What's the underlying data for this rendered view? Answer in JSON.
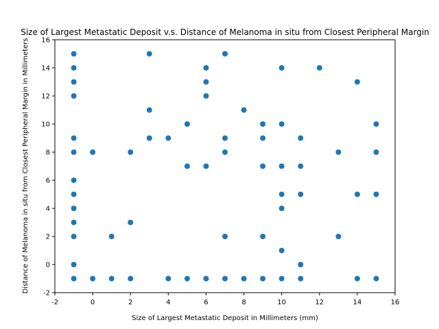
{
  "chart_data": {
    "type": "scatter",
    "title": "Size of Largest Metastatic Deposit v.s. Distance of Melanoma in situ from Closest Peripheral Margin",
    "xlabel": "Size of Largest Metastatic Deposit in Millimeters (mm)",
    "ylabel": "Distance of Melanoma in situ from Closest Peripheral Margin in Millimeters",
    "xlim": [
      -2,
      16
    ],
    "ylim": [
      -2,
      16
    ],
    "xticks": [
      -2,
      0,
      2,
      4,
      6,
      8,
      10,
      12,
      14,
      16
    ],
    "yticks": [
      -2,
      0,
      2,
      4,
      6,
      8,
      10,
      12,
      14,
      16
    ],
    "grid": false,
    "marker_color": "#1f77b4",
    "points": [
      [
        -1,
        15
      ],
      [
        -1,
        14
      ],
      [
        -1,
        13
      ],
      [
        -1,
        12
      ],
      [
        -1,
        9
      ],
      [
        -1,
        8
      ],
      [
        -1,
        6
      ],
      [
        -1,
        5
      ],
      [
        -1,
        4
      ],
      [
        -1,
        3
      ],
      [
        -1,
        2
      ],
      [
        -1,
        0
      ],
      [
        -1,
        -1
      ],
      [
        0,
        8
      ],
      [
        0,
        -1
      ],
      [
        1,
        2
      ],
      [
        1,
        -1
      ],
      [
        2,
        8
      ],
      [
        2,
        3
      ],
      [
        2,
        -1
      ],
      [
        3,
        15
      ],
      [
        3,
        11
      ],
      [
        3,
        9
      ],
      [
        4,
        9
      ],
      [
        4,
        -1
      ],
      [
        5,
        10
      ],
      [
        5,
        7
      ],
      [
        5,
        -1
      ],
      [
        6,
        14
      ],
      [
        6,
        13
      ],
      [
        6,
        12
      ],
      [
        6,
        7
      ],
      [
        6,
        -1
      ],
      [
        7,
        15
      ],
      [
        7,
        9
      ],
      [
        7,
        8
      ],
      [
        7,
        2
      ],
      [
        7,
        -1
      ],
      [
        8,
        11
      ],
      [
        8,
        -1
      ],
      [
        9,
        10
      ],
      [
        9,
        9
      ],
      [
        9,
        7
      ],
      [
        9,
        2
      ],
      [
        9,
        -1
      ],
      [
        10,
        14
      ],
      [
        10,
        10
      ],
      [
        10,
        7
      ],
      [
        10,
        5
      ],
      [
        10,
        4
      ],
      [
        10,
        1
      ],
      [
        10,
        -1
      ],
      [
        11,
        9
      ],
      [
        11,
        7
      ],
      [
        11,
        5
      ],
      [
        11,
        0
      ],
      [
        11,
        -1
      ],
      [
        12,
        14
      ],
      [
        13,
        8
      ],
      [
        13,
        2
      ],
      [
        14,
        13
      ],
      [
        14,
        5
      ],
      [
        14,
        -1
      ],
      [
        15,
        10
      ],
      [
        15,
        8
      ],
      [
        15,
        5
      ],
      [
        15,
        -1
      ]
    ]
  }
}
